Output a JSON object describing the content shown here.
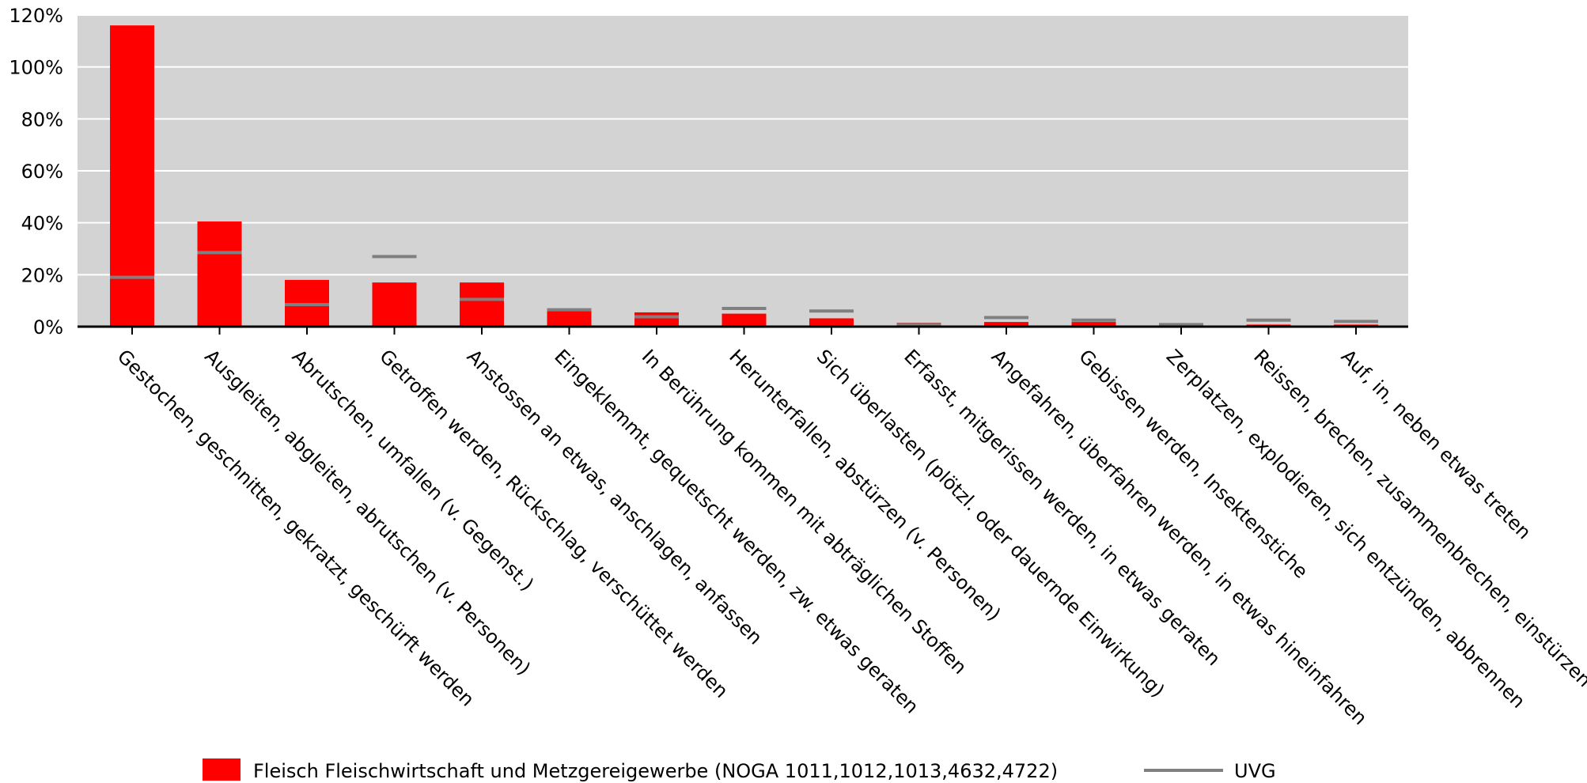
{
  "chart_data": {
    "type": "bar",
    "categories": [
      "Gestochen, geschnitten, gekratzt, geschürft werden",
      "Ausgleiten, abgleiten, abrutschen (v. Personen)",
      "Abrutschen, umfallen (v. Gegenst.)",
      "Getroffen werden, Rückschlag, verschüttet werden",
      "Anstossen an etwas, anschlagen, anfassen",
      "Eingeklemmt, gequetscht werden, zw. etwas geraten",
      "In Berührung kommen mit abträglichen Stoffen",
      "Herunterfallen, abstürzen (v. Personen)",
      "Sich überlasten (plötzl. oder dauernde Einwirkung)",
      "Erfasst, mitgerissen werden, in etwas geraten",
      "Angefahren, überfahren werden, in etwas hineinfahren",
      "Gebissen werden, Insektenstiche",
      "Zerplatzen, explodieren, sich entzünden, abbrennen",
      "Reissen, brechen, zusammenbrechen, einstürzen",
      "Auf, in, neben etwas treten"
    ],
    "series": [
      {
        "name": "Fleisch Fleischwirtschaft und Metzgereigewerbe (NOGA 1011,1012,1013,4632,4722)",
        "kind": "bar",
        "color": "#ff0000",
        "values": [
          116,
          40.5,
          18,
          17,
          17,
          7,
          5.5,
          5,
          3.2,
          1.5,
          1.8,
          1.8,
          0.3,
          0.8,
          0.8
        ]
      },
      {
        "name": "UVG",
        "kind": "marker",
        "color": "#808080",
        "values": [
          19,
          28.5,
          8.5,
          27,
          10.5,
          6.5,
          3.8,
          7,
          6,
          0.8,
          3.5,
          2.5,
          0.8,
          2.5,
          2
        ]
      }
    ],
    "y_ticks": [
      "0%",
      "20%",
      "40%",
      "60%",
      "80%",
      "100%",
      "120%"
    ],
    "ylim": [
      0,
      120
    ],
    "ytick_step": 20,
    "grid": true,
    "legend_position": "bottom"
  }
}
